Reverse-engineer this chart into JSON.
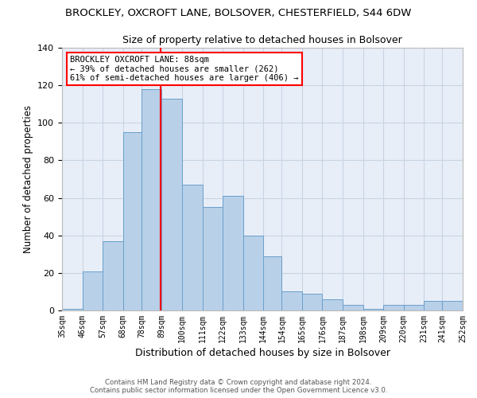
{
  "title_line1": "BROCKLEY, OXCROFT LANE, BOLSOVER, CHESTERFIELD, S44 6DW",
  "title_line2": "Size of property relative to detached houses in Bolsover",
  "xlabel": "Distribution of detached houses by size in Bolsover",
  "ylabel": "Number of detached properties",
  "bar_values": [
    1,
    21,
    37,
    95,
    118,
    113,
    67,
    55,
    61,
    40,
    29,
    10,
    9,
    6,
    3,
    1,
    3,
    3,
    5,
    5
  ],
  "bin_labels": [
    "35sqm",
    "46sqm",
    "57sqm",
    "68sqm",
    "78sqm",
    "89sqm",
    "100sqm",
    "111sqm",
    "122sqm",
    "133sqm",
    "144sqm",
    "154sqm",
    "165sqm",
    "176sqm",
    "187sqm",
    "198sqm",
    "209sqm",
    "220sqm",
    "231sqm",
    "241sqm",
    "252sqm"
  ],
  "bar_color": "#b8d0e8",
  "bar_edge_color": "#6aa0cc",
  "grid_color": "#c8d4e4",
  "background_color": "#e8eef8",
  "vline_color": "red",
  "annotation_box_text": "BROCKLEY OXCROFT LANE: 88sqm\n← 39% of detached houses are smaller (262)\n61% of semi-detached houses are larger (406) →",
  "annotation_box_color": "red",
  "footer_line1": "Contains HM Land Registry data © Crown copyright and database right 2024.",
  "footer_line2": "Contains public sector information licensed under the Open Government Licence v3.0.",
  "ylim": [
    0,
    140
  ],
  "yticks": [
    0,
    20,
    40,
    60,
    80,
    100,
    120,
    140
  ],
  "bin_edges": [
    35,
    46,
    57,
    68,
    78,
    89,
    100,
    111,
    122,
    133,
    144,
    154,
    165,
    176,
    187,
    198,
    209,
    220,
    231,
    241,
    252
  ]
}
